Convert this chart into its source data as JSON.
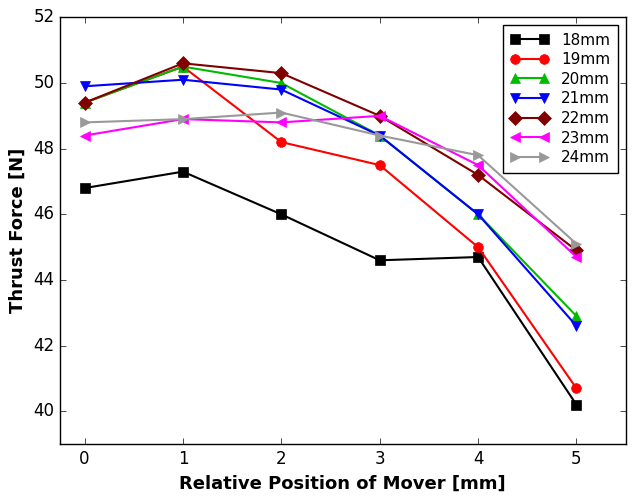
{
  "x": [
    0,
    1,
    2,
    3,
    4,
    5
  ],
  "series": [
    {
      "label": "18mm",
      "color": "#000000",
      "marker": "s",
      "values": [
        46.8,
        47.3,
        46.0,
        44.6,
        44.7,
        40.2
      ]
    },
    {
      "label": "19mm",
      "color": "#ff0000",
      "marker": "o",
      "values": [
        49.4,
        50.5,
        48.2,
        47.5,
        45.0,
        40.7
      ]
    },
    {
      "label": "20mm",
      "color": "#00bb00",
      "marker": "^",
      "values": [
        49.4,
        50.5,
        50.0,
        48.4,
        46.0,
        42.9
      ]
    },
    {
      "label": "21mm",
      "color": "#0000ff",
      "marker": "v",
      "values": [
        49.9,
        50.1,
        49.8,
        48.4,
        46.0,
        42.6
      ]
    },
    {
      "label": "22mm",
      "color": "#800000",
      "marker": "D",
      "values": [
        49.4,
        50.6,
        50.3,
        49.0,
        47.2,
        44.9
      ]
    },
    {
      "label": "23mm",
      "color": "#ff00ff",
      "marker": "<",
      "values": [
        48.4,
        48.9,
        48.8,
        49.0,
        47.5,
        44.7
      ]
    },
    {
      "label": "24mm",
      "color": "#999999",
      "marker": ">",
      "values": [
        48.8,
        48.9,
        49.1,
        48.4,
        47.8,
        45.1
      ]
    }
  ],
  "xlabel": "Relative Position of Mover [mm]",
  "ylabel": "Thrust Force [N]",
  "xlim": [
    -0.25,
    5.5
  ],
  "ylim": [
    39,
    52
  ],
  "yticks": [
    40,
    42,
    44,
    46,
    48,
    50,
    52
  ],
  "xticks": [
    0,
    1,
    2,
    3,
    4,
    5
  ],
  "linewidth": 1.5,
  "markersize": 7,
  "legend_loc": "upper right",
  "background_color": "#ffffff"
}
